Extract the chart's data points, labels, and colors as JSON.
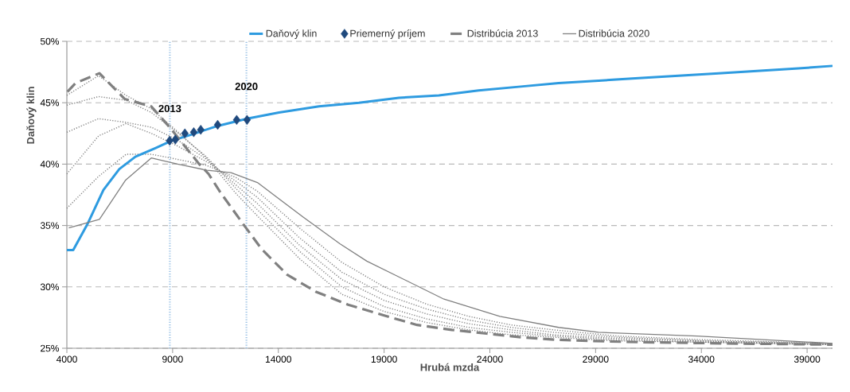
{
  "chart_data": {
    "type": "line",
    "xlabel": "Hrubá mzda",
    "ylabel": "Daňový klin",
    "xlim": [
      4000,
      40200
    ],
    "ylim": [
      25,
      50
    ],
    "xticks": [
      4000,
      9000,
      14000,
      19000,
      24000,
      29000,
      34000,
      39000
    ],
    "yticks": [
      {
        "value": 25,
        "label": "25%"
      },
      {
        "value": 30,
        "label": "30%"
      },
      {
        "value": 35,
        "label": "35%"
      },
      {
        "value": 40,
        "label": "40%"
      },
      {
        "value": 45,
        "label": "45%"
      },
      {
        "value": 50,
        "label": "50%"
      }
    ],
    "grid": "y",
    "legend": "top",
    "ref_lines": [
      {
        "axis": "x",
        "value": 8870,
        "color": "#9dc3e6",
        "line_style": "dotted"
      },
      {
        "axis": "x",
        "value": 12490,
        "color": "#9dc3e6",
        "line_style": "dotted"
      }
    ],
    "annotations": [
      {
        "text": "2013",
        "x": 8870,
        "y": 44.0
      },
      {
        "text": "2020",
        "x": 12490,
        "y": 45.8
      }
    ],
    "series": [
      {
        "name": "Daňový klin",
        "color": "#2e9be0",
        "line_style": "solid",
        "marker": "none",
        "x": [
          4000,
          4300,
          4970,
          5730,
          6480,
          7240,
          8180,
          8940,
          9880,
          11010,
          12520,
          14030,
          15920,
          17810,
          19700,
          21590,
          23470,
          25360,
          27250,
          29140,
          31030,
          32920,
          34810,
          36700,
          38590,
          40200
        ],
        "values": [
          33.0,
          33.0,
          35.1,
          37.9,
          39.6,
          40.6,
          41.3,
          41.9,
          42.4,
          43.05,
          43.7,
          44.2,
          44.7,
          45.0,
          45.4,
          45.6,
          46.0,
          46.3,
          46.6,
          46.8,
          47.0,
          47.2,
          47.4,
          47.6,
          47.8,
          48.0
        ]
      },
      {
        "name": "Priemerný príjem",
        "type": "scatter",
        "color": "#1f497d",
        "marker": "diamond",
        "x": [
          8860,
          9130,
          9580,
          10000,
          10330,
          11130,
          12030,
          12520
        ],
        "values": [
          41.9,
          42.0,
          42.5,
          42.6,
          42.8,
          43.2,
          43.6,
          43.6
        ]
      },
      {
        "name": "Distribúcia 2013",
        "color": "#808080",
        "line_style": "dashed",
        "marker": "none",
        "x": [
          4030,
          4410,
          5540,
          6740,
          7990,
          8860,
          10260,
          10700,
          11260,
          12260,
          13200,
          14410,
          15780,
          17300,
          18940,
          20560,
          22200,
          23840,
          25470,
          27110,
          28750,
          31000,
          35000,
          40200
        ],
        "values": [
          45.9,
          46.6,
          47.4,
          45.3,
          44.7,
          43.0,
          40.0,
          39.2,
          37.7,
          35.3,
          33.1,
          31.0,
          29.6,
          28.55,
          27.7,
          26.9,
          26.5,
          26.2,
          25.9,
          25.7,
          25.6,
          25.5,
          25.4,
          25.3
        ]
      },
      {
        "name": "Distribúcia 2020",
        "color": "#808080",
        "line_style": "solid",
        "marker": "none",
        "x": [
          4090,
          5540,
          6780,
          7990,
          9240,
          10630,
          11760,
          13010,
          15160,
          16920,
          18180,
          21830,
          24470,
          27250,
          29130,
          33800,
          40200
        ],
        "values": [
          34.8,
          35.5,
          38.7,
          40.5,
          40.0,
          39.5,
          39.3,
          38.5,
          35.7,
          33.5,
          32.1,
          29.0,
          27.6,
          26.7,
          26.3,
          26.0,
          25.4
        ]
      },
      {
        "type": "line",
        "color": "#808080",
        "line_style": "dotted",
        "marker": "none",
        "x": [
          4000,
          5500,
          6800,
          8000,
          9200,
          10600,
          12000,
          13000,
          15000,
          17000,
          19000,
          21000,
          23000,
          25000,
          27000,
          30000,
          34000,
          40000
        ],
        "values": [
          45.6,
          47.2,
          45.6,
          44.5,
          42.7,
          40.5,
          37.6,
          35.8,
          32.3,
          29.4,
          28.0,
          27.1,
          26.5,
          26.1,
          25.9,
          25.6,
          25.5,
          25.3
        ]
      },
      {
        "type": "line",
        "color": "#808080",
        "line_style": "dotted",
        "marker": "none",
        "x": [
          4000,
          5500,
          6800,
          8000,
          9200,
          10600,
          12000,
          13000,
          15000,
          17000,
          19000,
          21000,
          23000,
          25000,
          27000,
          30000,
          34000,
          40000
        ],
        "values": [
          44.8,
          45.5,
          45.2,
          44.2,
          42.6,
          40.6,
          38.0,
          36.3,
          32.9,
          30.0,
          28.4,
          27.4,
          26.7,
          26.3,
          26.0,
          25.7,
          25.5,
          25.3
        ]
      },
      {
        "type": "line",
        "color": "#808080",
        "line_style": "dotted",
        "marker": "none",
        "x": [
          4000,
          5500,
          6800,
          8000,
          9200,
          10600,
          12000,
          13000,
          15000,
          17000,
          19000,
          21000,
          23000,
          25000,
          27000,
          30000,
          34000,
          40000
        ],
        "values": [
          42.6,
          43.7,
          43.4,
          43.0,
          42.0,
          40.4,
          38.3,
          36.8,
          33.4,
          30.6,
          28.9,
          27.8,
          27.0,
          26.5,
          26.1,
          25.8,
          25.6,
          25.3
        ]
      },
      {
        "type": "line",
        "color": "#808080",
        "line_style": "dotted",
        "marker": "none",
        "x": [
          4000,
          5500,
          6800,
          8000,
          9200,
          10600,
          12000,
          13000,
          15000,
          17000,
          19000,
          21000,
          23000,
          25000,
          27000,
          30000,
          34000,
          40000
        ],
        "values": [
          39.2,
          42.3,
          43.3,
          42.5,
          41.5,
          40.2,
          38.6,
          37.3,
          34.0,
          31.2,
          29.4,
          28.2,
          27.3,
          26.7,
          26.3,
          25.9,
          25.6,
          25.4
        ]
      },
      {
        "type": "line",
        "color": "#808080",
        "line_style": "dotted",
        "marker": "none",
        "x": [
          4000,
          5500,
          6800,
          8000,
          9200,
          10600,
          12000,
          13000,
          15000,
          17000,
          19000,
          21000,
          23000,
          25000,
          27000,
          30000,
          34000,
          40000
        ],
        "values": [
          36.4,
          39.0,
          40.8,
          40.8,
          40.4,
          39.9,
          38.9,
          37.8,
          34.8,
          32.0,
          30.0,
          28.6,
          27.6,
          26.9,
          26.5,
          26.0,
          25.7,
          25.4
        ]
      }
    ]
  }
}
